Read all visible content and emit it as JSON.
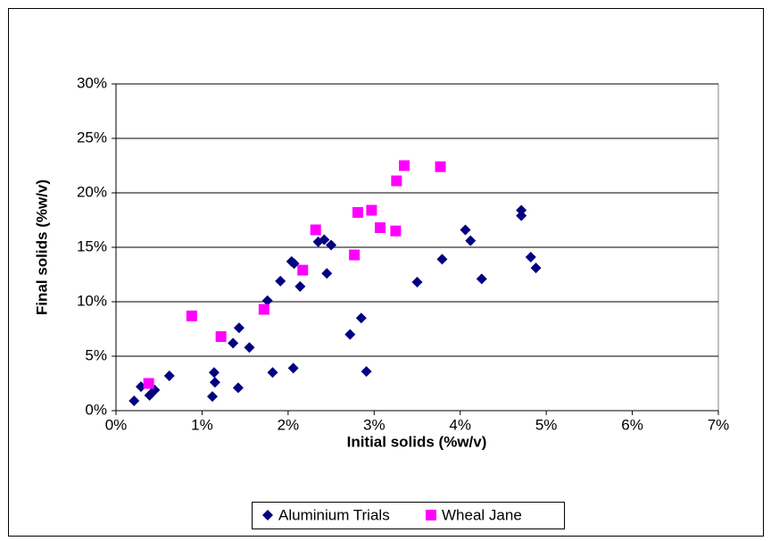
{
  "chart_data": {
    "type": "scatter",
    "x_label": "Initial solids (%w/v)",
    "y_label": "Final solids (%w/v)",
    "xlim": [
      0,
      7
    ],
    "xticks": [
      {
        "value": 0,
        "label": "0%"
      },
      {
        "value": 1,
        "label": "1%"
      },
      {
        "value": 2,
        "label": "2%"
      },
      {
        "value": 3,
        "label": "3%"
      },
      {
        "value": 4,
        "label": "4%"
      },
      {
        "value": 5,
        "label": "5%"
      },
      {
        "value": 6,
        "label": "6%"
      },
      {
        "value": 7,
        "label": "7%"
      }
    ],
    "ylim": [
      0,
      30
    ],
    "yticks": [
      {
        "value": 0,
        "label": "0%"
      },
      {
        "value": 5,
        "label": "5%"
      },
      {
        "value": 10,
        "label": "10%"
      },
      {
        "value": 15,
        "label": "15%"
      },
      {
        "value": 20,
        "label": "20%"
      },
      {
        "value": 25,
        "label": "25%"
      },
      {
        "value": 30,
        "label": "30%"
      }
    ],
    "grid": true,
    "legend": "bottom",
    "series": [
      {
        "name": "Aluminium Trials",
        "color": "#000080",
        "marker": "diamond",
        "x": [
          0.21,
          0.29,
          0.39,
          0.45,
          0.62,
          1.14,
          1.12,
          1.15,
          1.36,
          1.42,
          1.43,
          1.55,
          1.76,
          1.82,
          1.91,
          2.04,
          2.07,
          2.06,
          2.14,
          2.35,
          2.42,
          2.45,
          2.5,
          2.72,
          2.85,
          2.91,
          3.5,
          3.79,
          4.06,
          4.12,
          4.25,
          4.71,
          4.71,
          4.82,
          4.88
        ],
        "values": [
          0.9,
          2.2,
          1.4,
          1.9,
          3.2,
          3.5,
          1.3,
          2.6,
          6.2,
          2.1,
          7.6,
          5.8,
          10.1,
          3.5,
          11.9,
          13.7,
          13.5,
          3.9,
          11.4,
          15.5,
          15.7,
          12.6,
          15.2,
          7.0,
          8.5,
          3.6,
          11.8,
          13.9,
          16.6,
          15.6,
          12.1,
          18.4,
          17.9,
          14.1,
          13.1
        ]
      },
      {
        "name": "Wheal Jane",
        "color": "#ff00ff",
        "marker": "square",
        "x": [
          0.38,
          0.88,
          1.22,
          1.72,
          2.17,
          2.32,
          2.77,
          2.81,
          2.97,
          3.07,
          3.25,
          3.26,
          3.35,
          3.77
        ],
        "values": [
          2.5,
          8.7,
          6.8,
          9.3,
          12.9,
          16.6,
          14.3,
          18.2,
          18.4,
          16.8,
          16.5,
          21.1,
          22.5,
          22.4
        ]
      }
    ]
  }
}
